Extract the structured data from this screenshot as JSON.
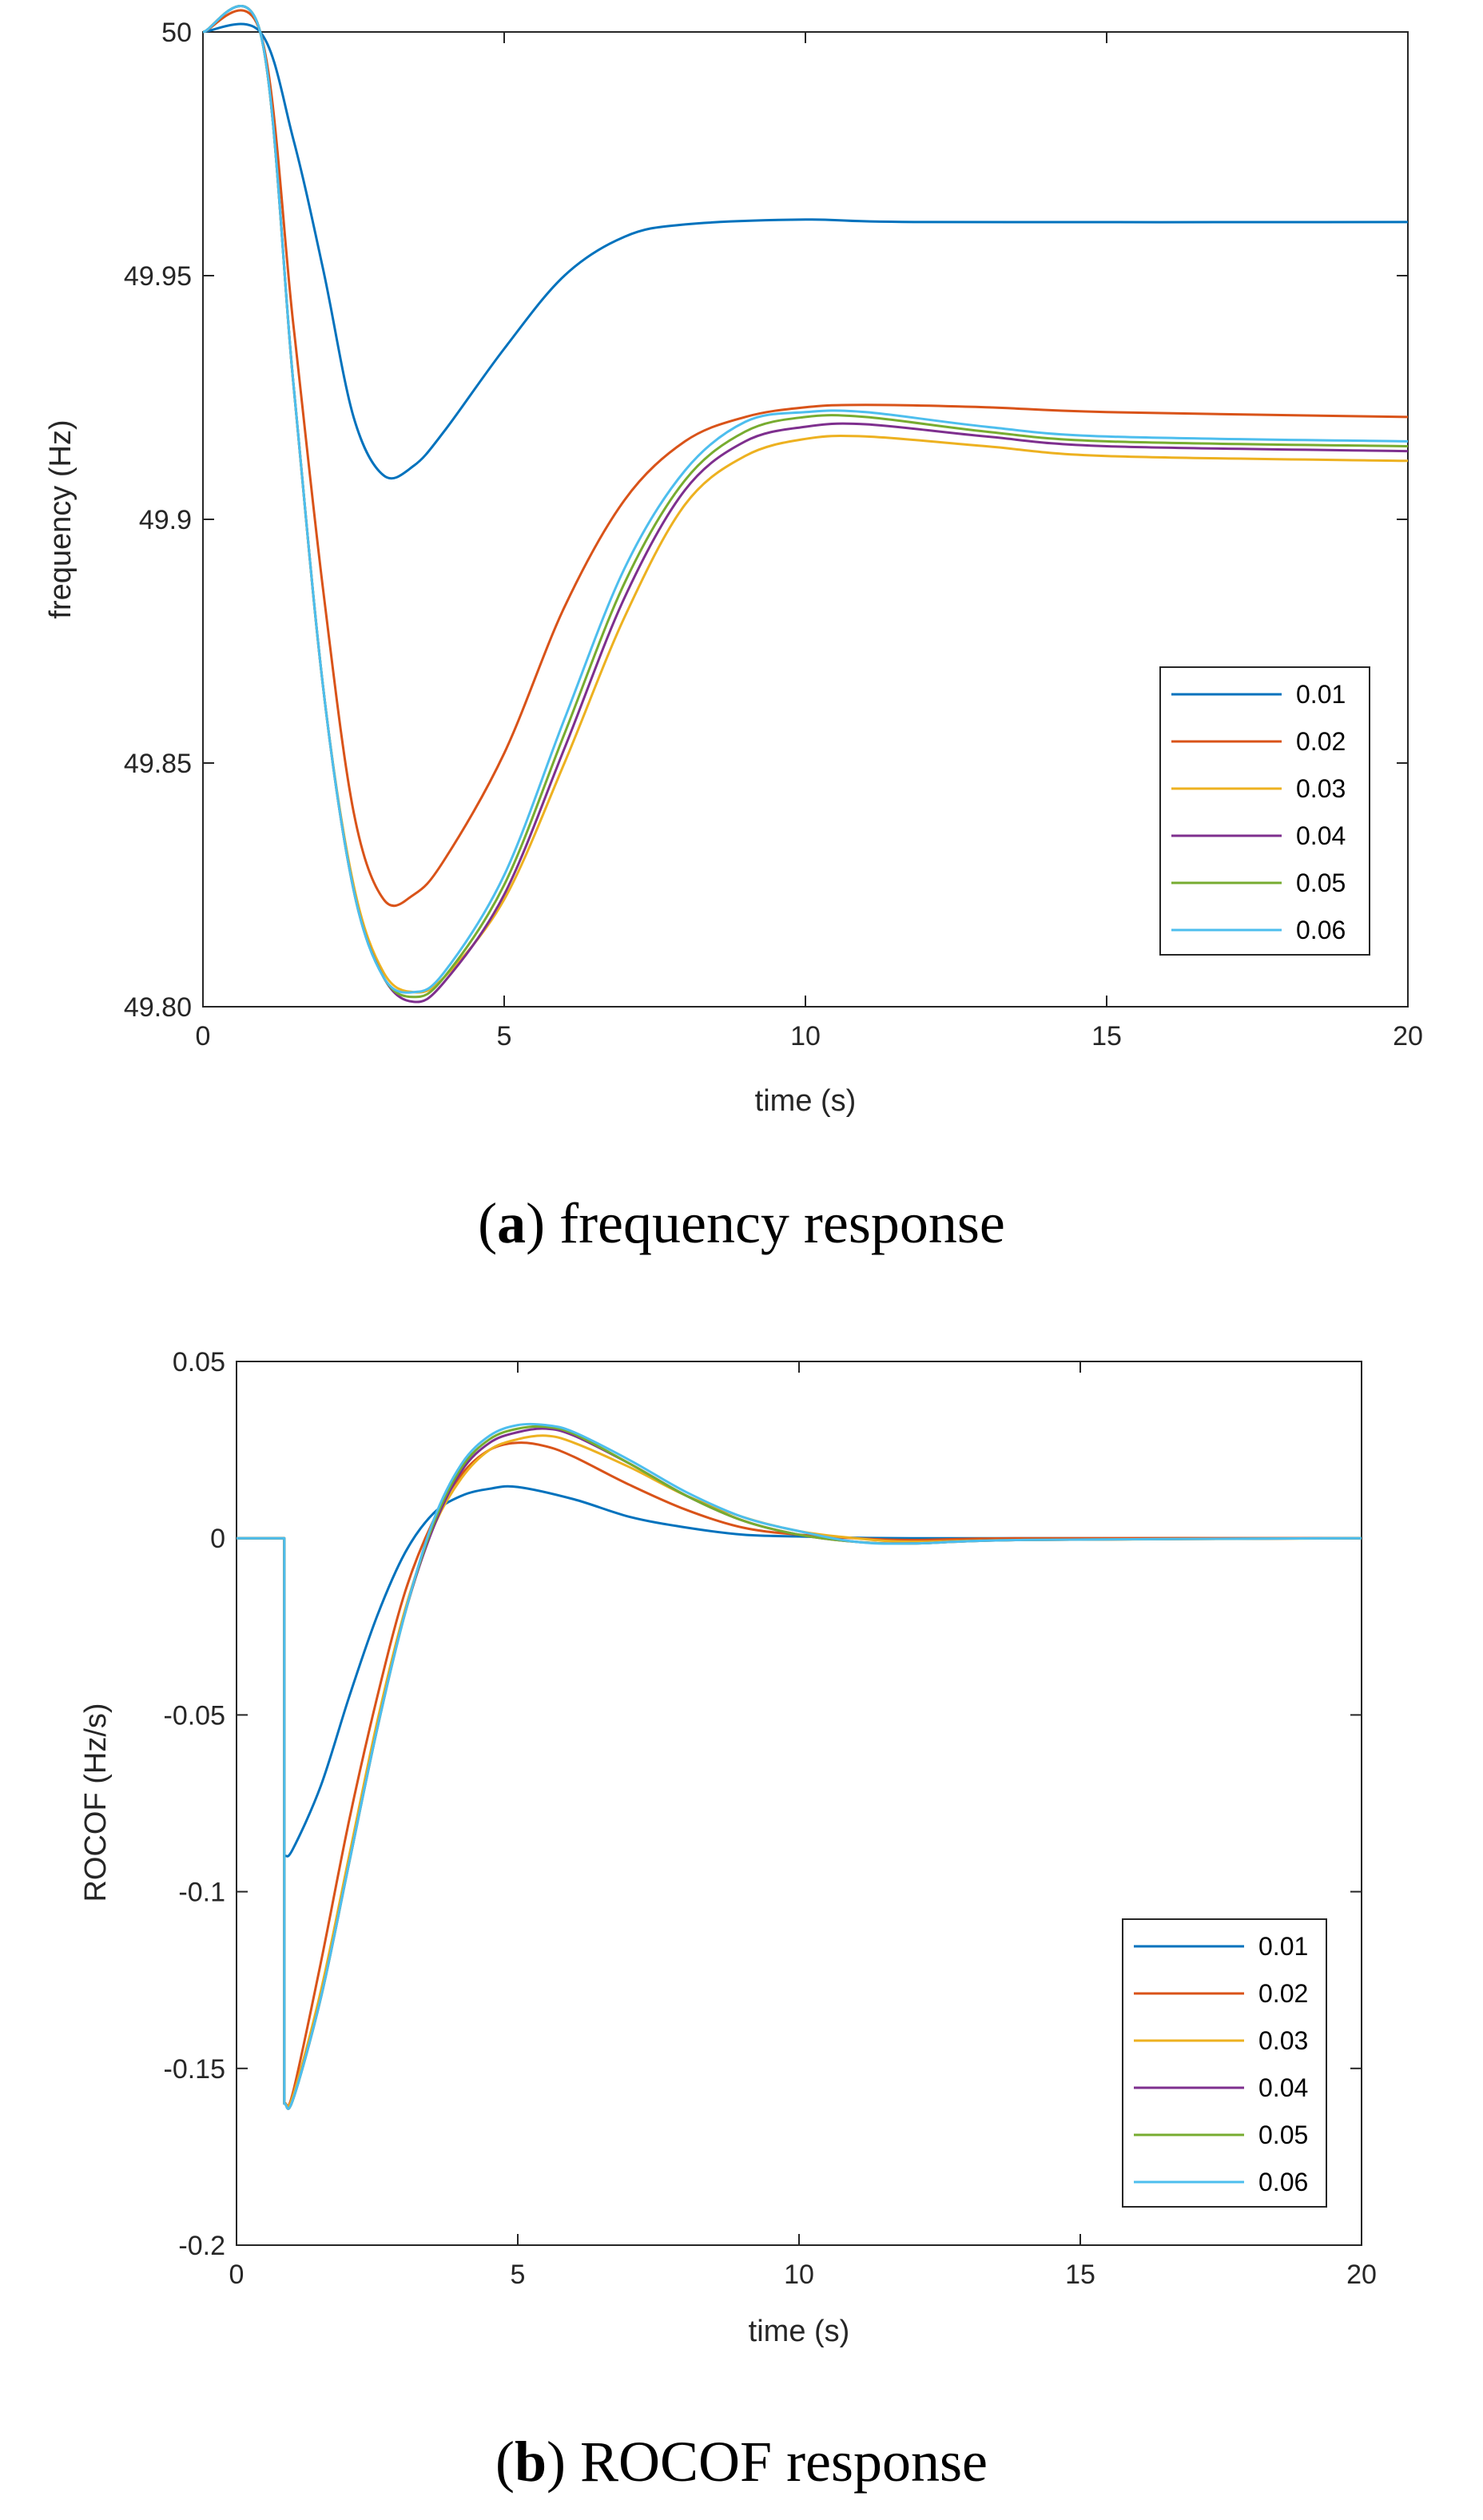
{
  "chart_data": [
    {
      "type": "line",
      "caption_letter": "a",
      "caption_text": "frequency response",
      "xlabel": "time (s)",
      "ylabel": "frequency (Hz)",
      "xlim": [
        0,
        20
      ],
      "ylim": [
        49.8,
        50
      ],
      "xticks": [
        0,
        5,
        10,
        15,
        20
      ],
      "xtick_labels": [
        "0",
        "5",
        "10",
        "15",
        "20"
      ],
      "yticks": [
        49.8,
        49.85,
        49.9,
        49.95,
        50
      ],
      "ytick_labels": [
        "49.80",
        "49.85",
        "49.9",
        "49.95",
        "50"
      ],
      "legend_position": "lower-right",
      "series": [
        {
          "name": "0.01",
          "color": "#0072BD",
          "points": [
            [
              0,
              50
            ],
            [
              0.95,
              50
            ],
            [
              1.5,
              49.978
            ],
            [
              2.0,
              49.951
            ],
            [
              2.5,
              49.921
            ],
            [
              3.0,
              49.909
            ],
            [
              3.5,
              49.911
            ],
            [
              4.0,
              49.918
            ],
            [
              5.0,
              49.935
            ],
            [
              6.0,
              49.95
            ],
            [
              7.0,
              49.958
            ],
            [
              8.0,
              49.9605
            ],
            [
              10.0,
              49.9615
            ],
            [
              12.0,
              49.961
            ],
            [
              20.0,
              49.961
            ]
          ]
        },
        {
          "name": "0.02",
          "color": "#D95319",
          "points": [
            [
              0,
              50
            ],
            [
              0.95,
              50
            ],
            [
              1.5,
              49.94
            ],
            [
              2.0,
              49.885
            ],
            [
              2.5,
              49.84
            ],
            [
              3.0,
              49.822
            ],
            [
              3.5,
              49.823
            ],
            [
              4.0,
              49.83
            ],
            [
              5.0,
              49.852
            ],
            [
              6.0,
              49.882
            ],
            [
              7.0,
              49.904
            ],
            [
              8.0,
              49.916
            ],
            [
              9.0,
              49.921
            ],
            [
              10.0,
              49.923
            ],
            [
              11.0,
              49.9235
            ],
            [
              13.0,
              49.923
            ],
            [
              15.0,
              49.922
            ],
            [
              20.0,
              49.921
            ]
          ]
        },
        {
          "name": "0.03",
          "color": "#EDB120",
          "points": [
            [
              0,
              50
            ],
            [
              0.95,
              50
            ],
            [
              1.5,
              49.928
            ],
            [
              2.0,
              49.865
            ],
            [
              2.5,
              49.825
            ],
            [
              3.0,
              49.807
            ],
            [
              3.5,
              49.803
            ],
            [
              4.0,
              49.806
            ],
            [
              5.0,
              49.822
            ],
            [
              6.0,
              49.85
            ],
            [
              7.0,
              49.88
            ],
            [
              8.0,
              49.903
            ],
            [
              9.0,
              49.913
            ],
            [
              10.0,
              49.9165
            ],
            [
              11.0,
              49.917
            ],
            [
              13.0,
              49.915
            ],
            [
              15.0,
              49.913
            ],
            [
              20.0,
              49.912
            ]
          ]
        },
        {
          "name": "0.04",
          "color": "#7E2F8E",
          "points": [
            [
              0,
              50
            ],
            [
              0.95,
              50
            ],
            [
              1.5,
              49.928
            ],
            [
              2.0,
              49.865
            ],
            [
              2.5,
              49.824
            ],
            [
              3.0,
              49.806
            ],
            [
              3.5,
              49.801
            ],
            [
              4.0,
              49.805
            ],
            [
              5.0,
              49.823
            ],
            [
              6.0,
              49.853
            ],
            [
              7.0,
              49.884
            ],
            [
              8.0,
              49.906
            ],
            [
              9.0,
              49.916
            ],
            [
              10.0,
              49.919
            ],
            [
              11.0,
              49.9195
            ],
            [
              13.0,
              49.917
            ],
            [
              15.0,
              49.915
            ],
            [
              20.0,
              49.914
            ]
          ]
        },
        {
          "name": "0.05",
          "color": "#77AC30",
          "points": [
            [
              0,
              50
            ],
            [
              0.95,
              50
            ],
            [
              1.5,
              49.928
            ],
            [
              2.0,
              49.865
            ],
            [
              2.5,
              49.824
            ],
            [
              3.0,
              49.806
            ],
            [
              3.5,
              49.802
            ],
            [
              4.0,
              49.806
            ],
            [
              5.0,
              49.825
            ],
            [
              6.0,
              49.856
            ],
            [
              7.0,
              49.887
            ],
            [
              8.0,
              49.908
            ],
            [
              9.0,
              49.918
            ],
            [
              10.0,
              49.921
            ],
            [
              11.0,
              49.921
            ],
            [
              13.0,
              49.918
            ],
            [
              15.0,
              49.916
            ],
            [
              20.0,
              49.915
            ]
          ]
        },
        {
          "name": "0.06",
          "color": "#4DBEEE",
          "points": [
            [
              0,
              50
            ],
            [
              0.95,
              50
            ],
            [
              1.5,
              49.928
            ],
            [
              2.0,
              49.865
            ],
            [
              2.5,
              49.824
            ],
            [
              3.0,
              49.806
            ],
            [
              3.5,
              49.803
            ],
            [
              4.0,
              49.807
            ],
            [
              5.0,
              49.827
            ],
            [
              6.0,
              49.859
            ],
            [
              7.0,
              49.89
            ],
            [
              8.0,
              49.91
            ],
            [
              9.0,
              49.92
            ],
            [
              10.0,
              49.922
            ],
            [
              11.0,
              49.922
            ],
            [
              13.0,
              49.919
            ],
            [
              15.0,
              49.917
            ],
            [
              20.0,
              49.916
            ]
          ]
        }
      ]
    },
    {
      "type": "line",
      "caption_letter": "b",
      "caption_text": "ROCOF response",
      "xlabel": "time (s)",
      "ylabel": "ROCOF (Hz/s)",
      "xlim": [
        0,
        20
      ],
      "ylim": [
        -0.2,
        0.05
      ],
      "xticks": [
        0,
        5,
        10,
        15,
        20
      ],
      "xtick_labels": [
        "0",
        "5",
        "10",
        "15",
        "20"
      ],
      "yticks": [
        -0.2,
        -0.15,
        -0.1,
        -0.05,
        0,
        0.05
      ],
      "ytick_labels": [
        "-0.2",
        "-0.15",
        "-0.1",
        "-0.05",
        "0",
        "0.05"
      ],
      "legend_position": "lower-right",
      "series": [
        {
          "name": "0.01",
          "color": "#0072BD",
          "points": [
            [
              0,
              0
            ],
            [
              0.85,
              0
            ],
            [
              0.85,
              -0.09
            ],
            [
              1.0,
              -0.088
            ],
            [
              1.5,
              -0.07
            ],
            [
              2.0,
              -0.045
            ],
            [
              2.5,
              -0.022
            ],
            [
              3.0,
              -0.004
            ],
            [
              3.5,
              0.007
            ],
            [
              4.0,
              0.012
            ],
            [
              4.5,
              0.014
            ],
            [
              5.0,
              0.0145
            ],
            [
              6.0,
              0.011
            ],
            [
              7.0,
              0.006
            ],
            [
              8.0,
              0.003
            ],
            [
              9.0,
              0.001
            ],
            [
              10.0,
              0.0005
            ],
            [
              12.0,
              0.0
            ],
            [
              20.0,
              0.0
            ]
          ]
        },
        {
          "name": "0.02",
          "color": "#D95319",
          "points": [
            [
              0,
              0
            ],
            [
              0.85,
              0
            ],
            [
              0.85,
              -0.16
            ],
            [
              1.0,
              -0.157
            ],
            [
              1.5,
              -0.12
            ],
            [
              2.0,
              -0.08
            ],
            [
              2.5,
              -0.045
            ],
            [
              3.0,
              -0.015
            ],
            [
              3.5,
              0.005
            ],
            [
              4.0,
              0.018
            ],
            [
              4.5,
              0.025
            ],
            [
              5.0,
              0.027
            ],
            [
              5.5,
              0.026
            ],
            [
              6.0,
              0.023
            ],
            [
              7.0,
              0.015
            ],
            [
              8.0,
              0.008
            ],
            [
              9.0,
              0.003
            ],
            [
              10.0,
              0.001
            ],
            [
              11.0,
              0.0
            ],
            [
              12.0,
              -0.0005
            ],
            [
              14.0,
              0.0
            ],
            [
              20.0,
              0.0
            ]
          ]
        },
        {
          "name": "0.03",
          "color": "#EDB120",
          "points": [
            [
              0,
              0
            ],
            [
              0.85,
              0
            ],
            [
              0.85,
              -0.16
            ],
            [
              1.0,
              -0.158
            ],
            [
              1.5,
              -0.128
            ],
            [
              2.0,
              -0.09
            ],
            [
              2.5,
              -0.052
            ],
            [
              3.0,
              -0.02
            ],
            [
              3.5,
              0.003
            ],
            [
              4.0,
              0.017
            ],
            [
              4.5,
              0.025
            ],
            [
              5.0,
              0.028
            ],
            [
              5.5,
              0.029
            ],
            [
              6.0,
              0.027
            ],
            [
              7.0,
              0.02
            ],
            [
              8.0,
              0.012
            ],
            [
              9.0,
              0.006
            ],
            [
              10.0,
              0.002
            ],
            [
              11.0,
              0.0
            ],
            [
              12.0,
              -0.001
            ],
            [
              14.0,
              -0.0005
            ],
            [
              20.0,
              0.0
            ]
          ]
        },
        {
          "name": "0.04",
          "color": "#7E2F8E",
          "points": [
            [
              0,
              0
            ],
            [
              0.85,
              0
            ],
            [
              0.85,
              -0.16
            ],
            [
              1.0,
              -0.159
            ],
            [
              1.5,
              -0.13
            ],
            [
              2.0,
              -0.092
            ],
            [
              2.5,
              -0.054
            ],
            [
              3.0,
              -0.021
            ],
            [
              3.5,
              0.003
            ],
            [
              4.0,
              0.019
            ],
            [
              4.5,
              0.027
            ],
            [
              5.0,
              0.03
            ],
            [
              5.5,
              0.031
            ],
            [
              6.0,
              0.029
            ],
            [
              7.0,
              0.021
            ],
            [
              8.0,
              0.012
            ],
            [
              9.0,
              0.005
            ],
            [
              10.0,
              0.001
            ],
            [
              11.0,
              -0.001
            ],
            [
              12.0,
              -0.0015
            ],
            [
              14.0,
              -0.0005
            ],
            [
              20.0,
              0.0
            ]
          ]
        },
        {
          "name": "0.05",
          "color": "#77AC30",
          "points": [
            [
              0,
              0
            ],
            [
              0.85,
              0
            ],
            [
              0.85,
              -0.16
            ],
            [
              1.0,
              -0.159
            ],
            [
              1.5,
              -0.13
            ],
            [
              2.0,
              -0.092
            ],
            [
              2.5,
              -0.054
            ],
            [
              3.0,
              -0.021
            ],
            [
              3.5,
              0.004
            ],
            [
              4.0,
              0.02
            ],
            [
              4.5,
              0.028
            ],
            [
              5.0,
              0.031
            ],
            [
              5.5,
              0.0315
            ],
            [
              6.0,
              0.0295
            ],
            [
              7.0,
              0.021
            ],
            [
              8.0,
              0.012
            ],
            [
              9.0,
              0.005
            ],
            [
              10.0,
              0.001
            ],
            [
              11.0,
              -0.001
            ],
            [
              12.0,
              -0.0015
            ],
            [
              14.0,
              -0.0005
            ],
            [
              20.0,
              0.0
            ]
          ]
        },
        {
          "name": "0.06",
          "color": "#4DBEEE",
          "points": [
            [
              0,
              0
            ],
            [
              0.85,
              0
            ],
            [
              0.85,
              -0.16
            ],
            [
              1.0,
              -0.159
            ],
            [
              1.5,
              -0.13
            ],
            [
              2.0,
              -0.092
            ],
            [
              2.5,
              -0.054
            ],
            [
              3.0,
              -0.021
            ],
            [
              3.5,
              0.005
            ],
            [
              4.0,
              0.021
            ],
            [
              4.5,
              0.029
            ],
            [
              5.0,
              0.032
            ],
            [
              5.5,
              0.032
            ],
            [
              6.0,
              0.03
            ],
            [
              7.0,
              0.022
            ],
            [
              8.0,
              0.013
            ],
            [
              9.0,
              0.006
            ],
            [
              10.0,
              0.002
            ],
            [
              11.0,
              -0.001
            ],
            [
              12.0,
              -0.0015
            ],
            [
              14.0,
              -0.0005
            ],
            [
              20.0,
              0.0
            ]
          ]
        }
      ]
    }
  ]
}
